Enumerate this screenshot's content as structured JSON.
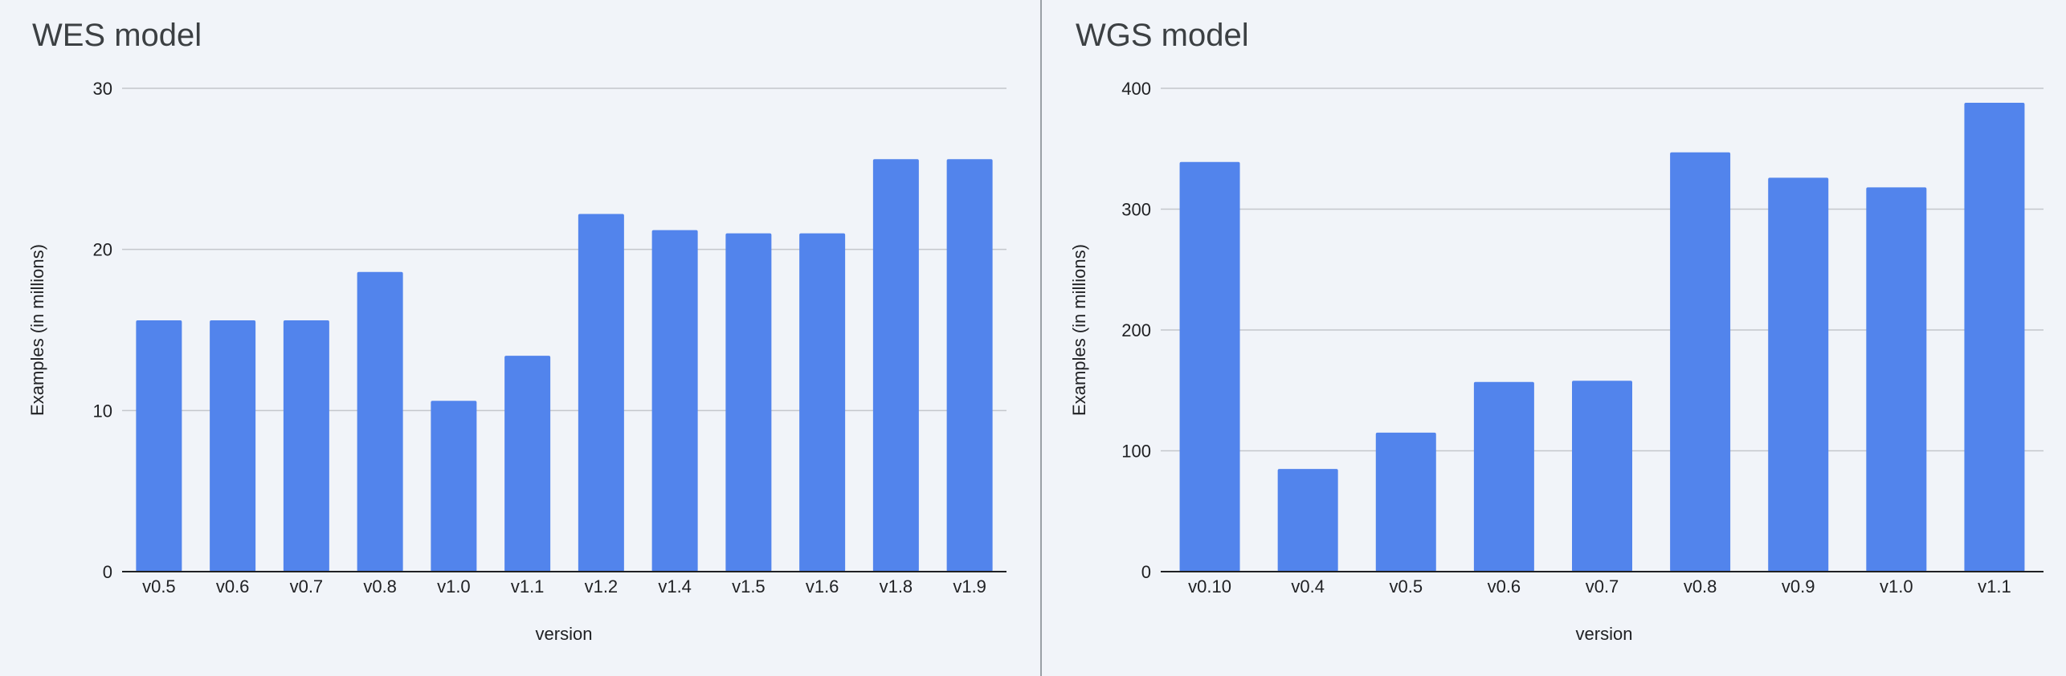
{
  "chart_data": [
    {
      "type": "bar",
      "title": "WES model",
      "xlabel": "version",
      "ylabel": "Examples (in millions)",
      "categories": [
        "v0.5",
        "v0.6",
        "v0.7",
        "v0.8",
        "v1.0",
        "v1.1",
        "v1.2",
        "v1.4",
        "v1.5",
        "v1.6",
        "v1.8",
        "v1.9"
      ],
      "values": [
        15.6,
        15.6,
        15.6,
        18.6,
        10.6,
        13.4,
        22.2,
        21.2,
        21.0,
        21.0,
        25.6,
        25.6
      ],
      "ylim": [
        0,
        30
      ],
      "yticks": [
        0,
        10,
        20,
        30
      ],
      "grid": true,
      "legend": "none",
      "color": "#5284ec"
    },
    {
      "type": "bar",
      "title": "WGS model",
      "xlabel": "version",
      "ylabel": "Examples (in millions)",
      "categories": [
        "v0.10",
        "v0.4",
        "v0.5",
        "v0.6",
        "v0.7",
        "v0.8",
        "v0.9",
        "v1.0",
        "v1.1"
      ],
      "values": [
        339,
        85,
        115,
        157,
        158,
        347,
        326,
        318,
        388
      ],
      "ylim": [
        0,
        400
      ],
      "yticks": [
        0,
        100,
        200,
        300,
        400
      ],
      "grid": true,
      "legend": "none",
      "color": "#5284ec"
    }
  ],
  "colors": {
    "background": "#f1f4f9",
    "bar": "#5284ec",
    "grid": "#c4c7cc",
    "axis": "#202124",
    "divider": "#9aa0a6"
  }
}
